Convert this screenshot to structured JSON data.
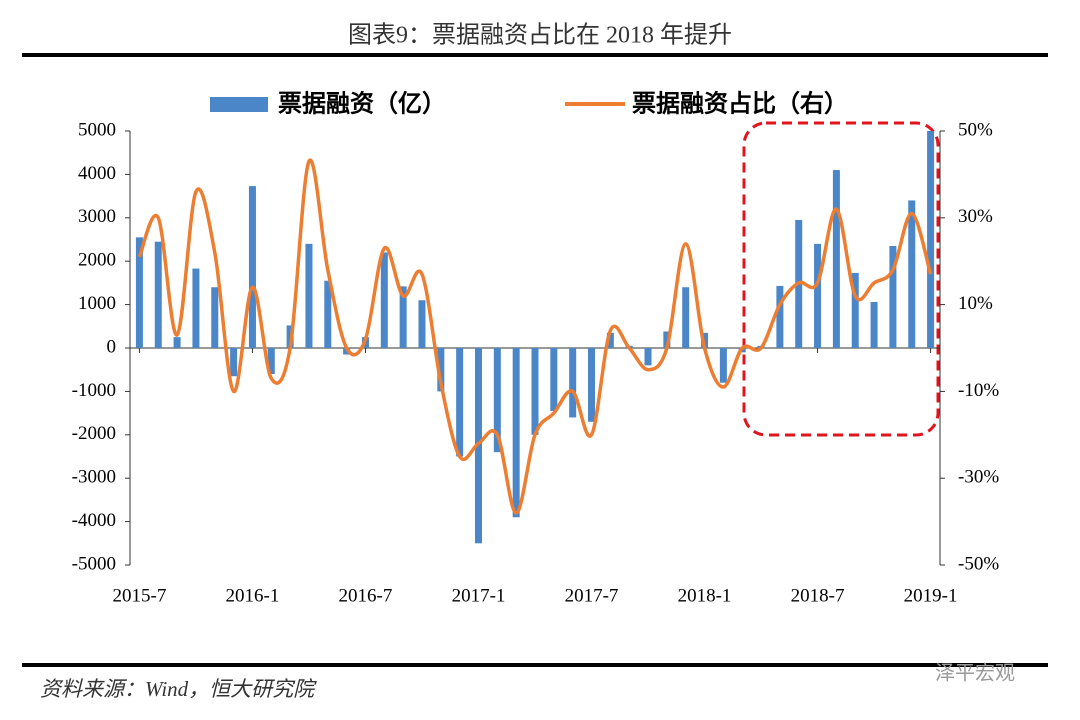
{
  "chart_data": {
    "type": "bar_line",
    "title": "图表9：票据融资占比在 2018 年提升",
    "source": "资料来源：Wind，恒大研究院",
    "watermark": "泽平宏观",
    "categories": [
      "2015-7",
      null,
      null,
      null,
      null,
      null,
      "2016-1",
      null,
      null,
      null,
      null,
      null,
      "2016-7",
      null,
      null,
      null,
      null,
      null,
      "2017-1",
      null,
      null,
      null,
      null,
      null,
      "2017-7",
      null,
      null,
      null,
      null,
      null,
      "2018-1",
      null,
      null,
      null,
      null,
      null,
      "2018-7",
      null,
      null,
      null,
      null,
      null,
      "2019-1"
    ],
    "series": [
      {
        "name": "票据融资（亿）",
        "color": "#4a86c8",
        "axis": "y",
        "values": [
          2550,
          2450,
          250,
          1830,
          1400,
          -650,
          3730,
          -600,
          520,
          2400,
          1550,
          -150,
          250,
          2200,
          1420,
          1100,
          -1000,
          -2500,
          -4500,
          -2400,
          -3900,
          -2000,
          -1450,
          -1600,
          -1700,
          350,
          50,
          -400,
          380,
          1400,
          350,
          -800,
          -100,
          50,
          1430,
          2950,
          2400,
          4100,
          1730,
          1060,
          2350,
          3400,
          5000
        ]
      },
      {
        "name": "票据融资占比（右）",
        "color": "#ed7d31",
        "axis": "y2",
        "values": [
          21,
          30,
          3,
          36,
          22,
          -10,
          14,
          -7,
          0,
          43,
          18,
          0,
          2,
          23,
          12,
          17,
          -8,
          -25,
          -22,
          -20,
          -38,
          -20,
          -15,
          -10,
          -20,
          4,
          0,
          -5,
          0,
          24,
          0,
          -9,
          0,
          0,
          10,
          15,
          15,
          32,
          12,
          15,
          18,
          31,
          17
        ]
      }
    ],
    "ylim": [
      -5000,
      5000
    ],
    "yticks": [
      -5000,
      -4000,
      -3000,
      -2000,
      -1000,
      0,
      1000,
      2000,
      3000,
      4000,
      5000
    ],
    "y2lim": [
      -50,
      50
    ],
    "y2ticks": [
      {
        "value": -50,
        "label": "-50%"
      },
      {
        "value": -30,
        "label": "-30%"
      },
      {
        "value": -10,
        "label": "-10%"
      },
      {
        "value": 10,
        "label": "10%"
      },
      {
        "value": 30,
        "label": "30%"
      },
      {
        "value": 50,
        "label": "50%"
      }
    ]
  }
}
